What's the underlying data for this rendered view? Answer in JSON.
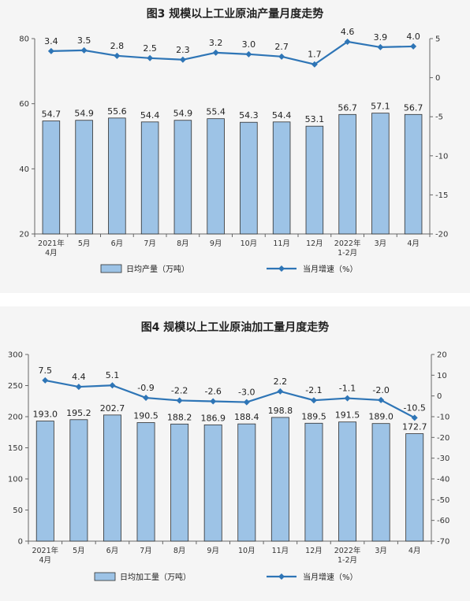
{
  "chart_data": [
    {
      "type": "bar",
      "title": "图3 规模以上工业原油产量月度走势",
      "categories": [
        "2021年\n4月",
        "5月",
        "6月",
        "7月",
        "8月",
        "9月",
        "10月",
        "11月",
        "12月",
        "2022年\n1-2月",
        "3月",
        "4月"
      ],
      "series": [
        {
          "name": "日均产量（万吨）",
          "type": "bar",
          "axis": "left",
          "values": [
            54.7,
            54.9,
            55.6,
            54.4,
            54.9,
            55.4,
            54.3,
            54.4,
            53.1,
            56.7,
            57.1,
            56.7
          ]
        },
        {
          "name": "当月增速（%）",
          "type": "line",
          "axis": "right",
          "values": [
            3.4,
            3.5,
            2.8,
            2.5,
            2.3,
            3.2,
            3.0,
            2.7,
            1.7,
            4.6,
            3.9,
            4.0
          ]
        }
      ],
      "ylim_left": [
        20,
        80
      ],
      "yticks_left": [
        20,
        40,
        60,
        80
      ],
      "ylim_right": [
        -20,
        5
      ],
      "yticks_right": [
        -20,
        -15,
        -10,
        -5,
        0,
        5
      ],
      "legend": "bottom",
      "colors": {
        "bar": "#9dc3e6",
        "bar_border": "#2f2f2f",
        "line": "#2e75b6"
      }
    },
    {
      "type": "bar",
      "title": "图4 规模以上工业原油加工量月度走势",
      "categories": [
        "2021年\n4月",
        "5月",
        "6月",
        "7月",
        "8月",
        "9月",
        "10月",
        "11月",
        "12月",
        "2022年\n1-2月",
        "3月",
        "4月"
      ],
      "series": [
        {
          "name": "日均加工量（万吨）",
          "type": "bar",
          "axis": "left",
          "values": [
            193.0,
            195.2,
            202.7,
            190.5,
            188.2,
            186.9,
            188.4,
            198.8,
            189.5,
            191.5,
            189.0,
            172.7
          ]
        },
        {
          "name": "当月增速（%）",
          "type": "line",
          "axis": "right",
          "values": [
            7.5,
            4.4,
            5.1,
            -0.9,
            -2.2,
            -2.6,
            -3.0,
            2.2,
            -2.1,
            -1.1,
            -2.0,
            -10.5
          ]
        }
      ],
      "ylim_left": [
        0,
        300
      ],
      "yticks_left": [
        0,
        50,
        100,
        150,
        200,
        250,
        300
      ],
      "ylim_right": [
        -70,
        20
      ],
      "yticks_right": [
        -70,
        -60,
        -50,
        -40,
        -30,
        -20,
        -10,
        0,
        10,
        20
      ],
      "legend": "bottom",
      "colors": {
        "bar": "#9dc3e6",
        "bar_border": "#2f2f2f",
        "line": "#2e75b6"
      }
    }
  ]
}
